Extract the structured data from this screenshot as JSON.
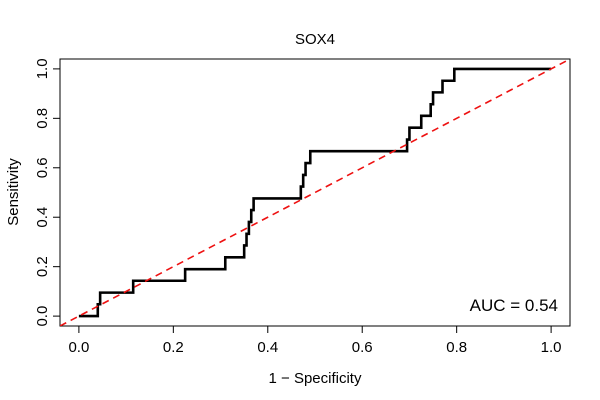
{
  "chart_data": {
    "type": "line",
    "title": "SOX4",
    "xlabel": "1 − Specificity",
    "ylabel": "Sensitivity",
    "xlim": [
      -0.04,
      1.04
    ],
    "ylim": [
      -0.04,
      1.04
    ],
    "x_ticks": [
      {
        "value": 0.0,
        "label": "0.0"
      },
      {
        "value": 0.2,
        "label": "0.2"
      },
      {
        "value": 0.4,
        "label": "0.4"
      },
      {
        "value": 0.6,
        "label": "0.6"
      },
      {
        "value": 0.8,
        "label": "0.8"
      },
      {
        "value": 1.0,
        "label": "1.0"
      }
    ],
    "y_ticks": [
      {
        "value": 0.0,
        "label": "0.0"
      },
      {
        "value": 0.2,
        "label": "0.2"
      },
      {
        "value": 0.4,
        "label": "0.4"
      },
      {
        "value": 0.6,
        "label": "0.6"
      },
      {
        "value": 0.8,
        "label": "0.8"
      },
      {
        "value": 1.0,
        "label": "1.0"
      }
    ],
    "grid": false,
    "annotation": "AUC = 0.54",
    "series": [
      {
        "color": "#000000",
        "x": [
          0.0,
          0.04,
          0.04,
          0.045,
          0.045,
          0.055,
          0.055,
          0.115,
          0.115,
          0.225,
          0.225,
          0.31,
          0.31,
          0.35,
          0.35,
          0.355,
          0.355,
          0.36,
          0.36,
          0.365,
          0.365,
          0.37,
          0.37,
          0.38,
          0.38,
          0.47,
          0.47,
          0.475,
          0.475,
          0.48,
          0.48,
          0.49,
          0.49,
          0.69,
          0.69,
          0.695,
          0.695,
          0.7,
          0.7,
          0.725,
          0.725,
          0.745,
          0.745,
          0.75,
          0.75,
          0.755,
          0.755,
          0.77,
          0.77,
          0.775,
          0.775,
          0.795,
          0.795,
          0.8,
          0.8,
          1.0
        ],
        "y": [
          0.0,
          0.0,
          0.048,
          0.048,
          0.095,
          0.095,
          0.095,
          0.095,
          0.143,
          0.143,
          0.19,
          0.19,
          0.238,
          0.238,
          0.286,
          0.286,
          0.333,
          0.333,
          0.381,
          0.381,
          0.429,
          0.429,
          0.476,
          0.476,
          0.476,
          0.476,
          0.524,
          0.524,
          0.571,
          0.571,
          0.619,
          0.619,
          0.667,
          0.667,
          0.667,
          0.667,
          0.714,
          0.714,
          0.762,
          0.762,
          0.81,
          0.81,
          0.857,
          0.857,
          0.905,
          0.905,
          0.905,
          0.905,
          0.952,
          0.952,
          0.952,
          0.952,
          1.0,
          1.0,
          1.0,
          1.0
        ]
      },
      {
        "color": "#ee1111",
        "dashed": true,
        "x": [
          -0.04,
          1.04
        ],
        "y": [
          -0.04,
          1.04
        ]
      }
    ]
  }
}
